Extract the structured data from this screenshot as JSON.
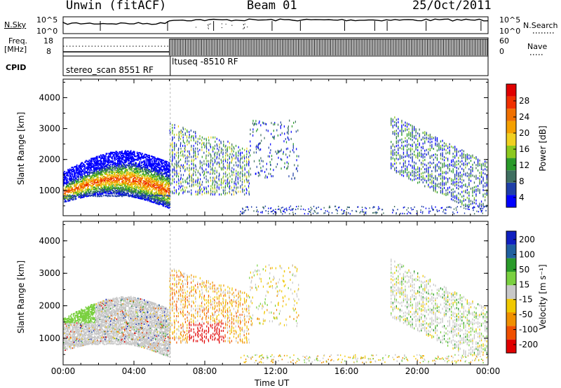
{
  "header": {
    "title": "Unwin (fitACF)",
    "beam": "Beam 01",
    "date": "25/Oct/2011"
  },
  "top_panel": {
    "nsky_label": "N.Sky",
    "nsky_ticks": [
      "10^5",
      "10^0"
    ],
    "nsearch_label": "N.Search",
    "freq_label_1": "Freq.",
    "freq_label_2": "[MHz]",
    "freq_ticks": [
      "18",
      "8"
    ],
    "nave_ticks": [
      "60",
      "0"
    ],
    "nave_label": "Nave",
    "cpid_label": "CPID",
    "cpid_1": "stereo_scan 8551 RF",
    "cpid_2": "ltuseq -8510 RF"
  },
  "chart_data": [
    {
      "type": "heatmap",
      "title": "",
      "xlabel": "Time UT",
      "ylabel": "Slant Range [km]",
      "x_ticks": [
        "00:00",
        "04:00",
        "08:00",
        "12:00",
        "16:00",
        "20:00",
        "00:00"
      ],
      "y_ticks": [
        1000,
        2000,
        3000,
        4000
      ],
      "xlim": [
        0,
        24
      ],
      "ylim": [
        180,
        4600
      ],
      "colorbar_label": "Power [dB]",
      "colorbar_ticks": [
        "28",
        "24",
        "20",
        "16",
        "12",
        "8",
        "4"
      ],
      "colorbar_colors": [
        "#0000ff",
        "#1f3fa8",
        "#3f6f60",
        "#2a9a2a",
        "#8cc81e",
        "#f0d020",
        "#f5a000",
        "#f07000",
        "#f03000",
        "#e00000"
      ]
    },
    {
      "type": "heatmap",
      "title": "",
      "xlabel": "Time UT",
      "ylabel": "Slant Range [km]",
      "x_ticks": [
        "00:00",
        "04:00",
        "08:00",
        "12:00",
        "16:00",
        "20:00",
        "00:00"
      ],
      "y_ticks": [
        1000,
        2000,
        3000,
        4000
      ],
      "xlim": [
        0,
        24
      ],
      "ylim": [
        180,
        4600
      ],
      "colorbar_label": "Velocity [m s⁻¹]",
      "colorbar_ticks": [
        "200",
        "100",
        "50",
        "15",
        "-15",
        "-50",
        "-100",
        "-200"
      ],
      "colorbar_colors": [
        "#e00000",
        "#f05000",
        "#f09000",
        "#f0c800",
        "#c8c8c8",
        "#7ad040",
        "#2a9a2a",
        "#2060a0",
        "#1020c0"
      ]
    }
  ]
}
